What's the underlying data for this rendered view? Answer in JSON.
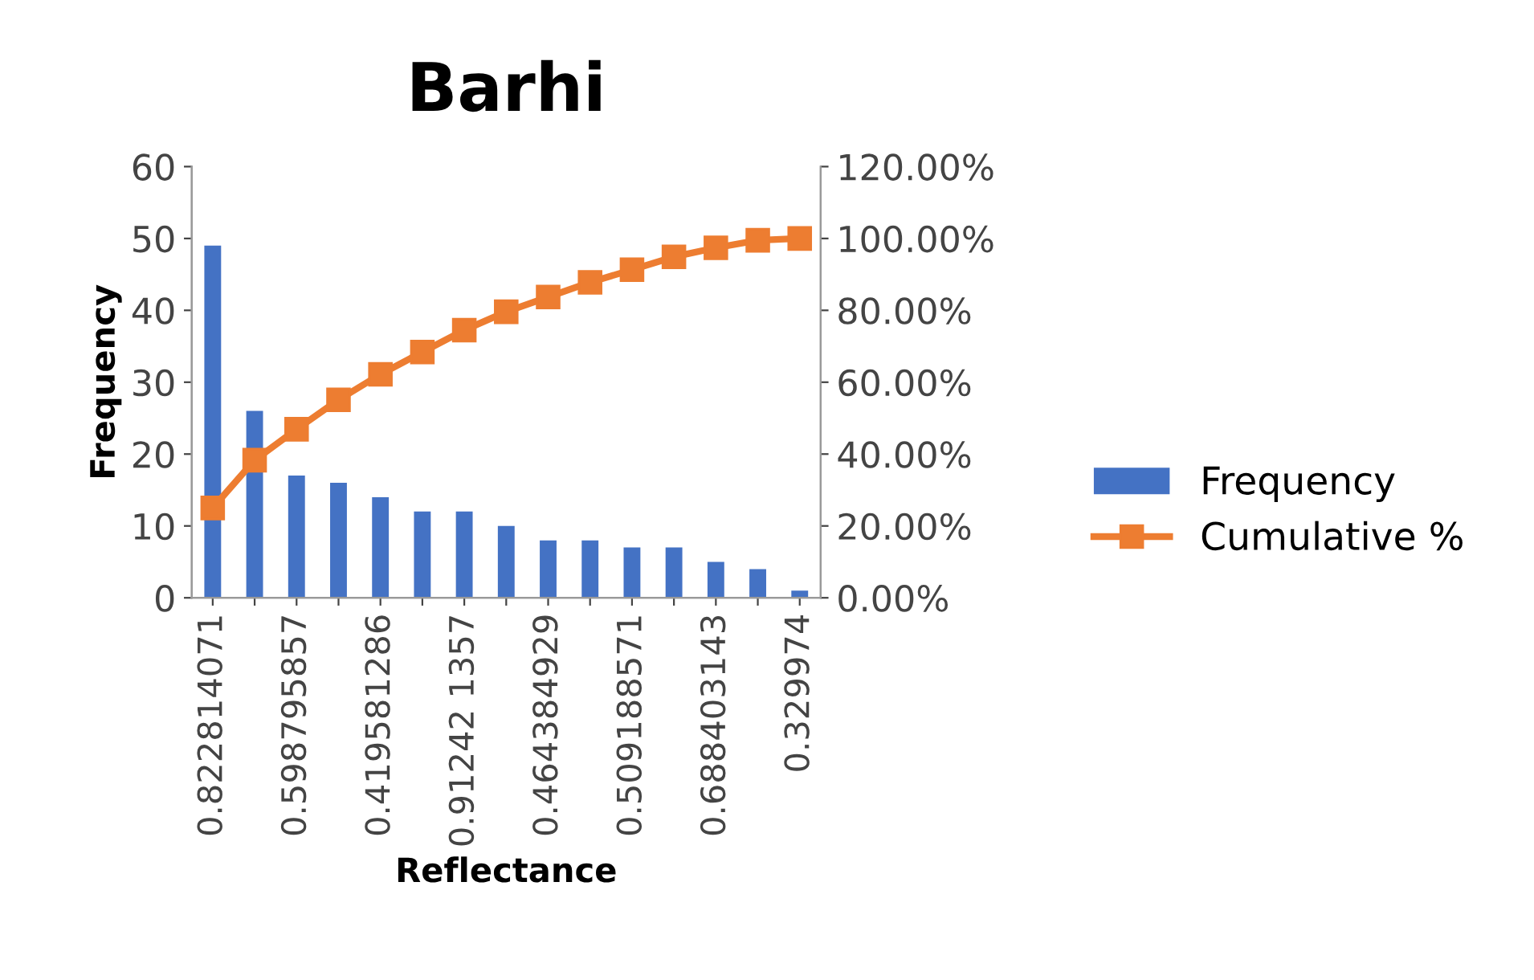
{
  "chart_data": {
    "type": "bar",
    "title": "Barhi",
    "xlabel": "Reflectance",
    "ylabel": "Frequency",
    "categories": [
      "0.822814071",
      null,
      "0.598795857",
      null,
      "0.419581286",
      null,
      "0.91242 1357",
      null,
      "0.464384929",
      null,
      "0.509188571",
      null,
      "0.688403143",
      null,
      "0.329974"
    ],
    "series": [
      {
        "name": "Frequency",
        "color": "#4472c4",
        "values": [
          49,
          26,
          17,
          16,
          14,
          12,
          12,
          10,
          8,
          8,
          7,
          7,
          5,
          4,
          1
        ]
      },
      {
        "name": "Cumulative %",
        "type": "line",
        "axis": "y2",
        "color": "#ed7d31",
        "marker": "square",
        "values": [
          25.0,
          38.3,
          46.9,
          55.1,
          62.2,
          68.4,
          74.5,
          79.6,
          83.7,
          87.8,
          91.3,
          94.9,
          97.4,
          99.5,
          100
        ]
      }
    ],
    "ylim": [
      0,
      60
    ],
    "yticks": [
      0,
      10,
      20,
      30,
      40,
      50,
      60
    ],
    "y2lim": [
      0,
      120
    ],
    "y2ticks": [
      {
        "value": 0,
        "label": "0.00%"
      },
      {
        "value": 20,
        "label": "20.00%"
      },
      {
        "value": 40,
        "label": "40.00%"
      },
      {
        "value": 60,
        "label": "60.00%"
      },
      {
        "value": 80,
        "label": "80.00%"
      },
      {
        "value": 100,
        "label": "100.00%"
      },
      {
        "value": 120,
        "label": "120.00%"
      }
    ],
    "grid": false,
    "legend": "right"
  }
}
